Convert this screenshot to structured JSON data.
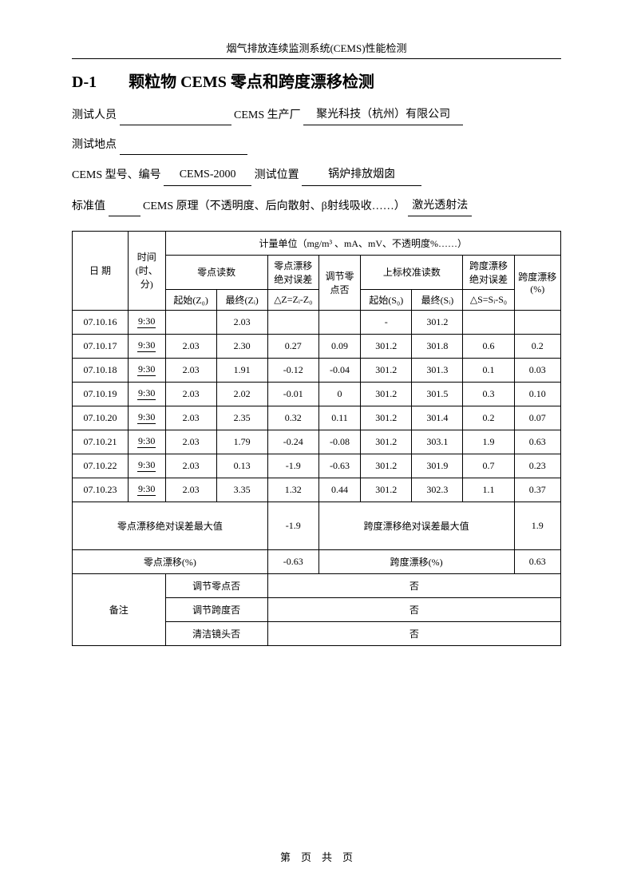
{
  "header": "烟气排放连续监测系统(CEMS)性能检测",
  "title_code": "D-1",
  "title_text": "颗粒物 CEMS 零点和跨度漂移检测",
  "info": {
    "tester_label": "测试人员",
    "tester_value": "",
    "manufacturer_label": "CEMS 生产厂",
    "manufacturer_value": "聚光科技（杭州）有限公司",
    "location_label": "测试地点",
    "location_value": "",
    "model_label": "CEMS 型号、编号",
    "model_value": "CEMS-2000",
    "position_label": "测试位置",
    "position_value": "锅炉排放烟囱",
    "standard_label": "标准值",
    "standard_value": "",
    "principle_label": "CEMS 原理（不透明度、后向散射、β射线吸收……）",
    "principle_value": "激光透射法"
  },
  "table": {
    "unit_header": "计量单位（mg/m³ 、mA、mV、不透明度%……）",
    "col_date": "日 期",
    "col_time": "时间(时、分)",
    "col_zero_read": "零点读数",
    "col_zero_abs": "零点漂移绝对误差",
    "col_adjust_zero": "调节零点否",
    "col_cal_read": "上标校准读数",
    "col_span_abs": "跨度漂移绝对误差",
    "col_span_drift": "跨度漂移(%)",
    "col_start_z": "起始(Z₀)",
    "col_end_z": "最终(Zᵢ)",
    "col_dz": "△Z=Zᵢ-Z₀",
    "col_start_s": "起始(S₀)",
    "col_end_s": "最终(Sᵢ)",
    "col_ds": "△S=Sᵢ-S₀",
    "rows": [
      {
        "date": "07.10.16",
        "time": "9:30",
        "z0": "",
        "zi": "2.03",
        "dz": "",
        "adj": "",
        "s0": "-",
        "si": "301.2",
        "ds": "",
        "drift": ""
      },
      {
        "date": "07.10.17",
        "time": "9:30",
        "z0": "2.03",
        "zi": "2.30",
        "dz": "0.27",
        "adj": "0.09",
        "s0": "301.2",
        "si": "301.8",
        "ds": "0.6",
        "drift": "0.2"
      },
      {
        "date": "07.10.18",
        "time": "9:30",
        "z0": "2.03",
        "zi": "1.91",
        "dz": "-0.12",
        "adj": "-0.04",
        "s0": "301.2",
        "si": "301.3",
        "ds": "0.1",
        "drift": "0.03"
      },
      {
        "date": "07.10.19",
        "time": "9:30",
        "z0": "2.03",
        "zi": "2.02",
        "dz": "-0.01",
        "adj": "0",
        "s0": "301.2",
        "si": "301.5",
        "ds": "0.3",
        "drift": "0.10"
      },
      {
        "date": "07.10.20",
        "time": "9:30",
        "z0": "2.03",
        "zi": "2.35",
        "dz": "0.32",
        "adj": "0.11",
        "s0": "301.2",
        "si": "301.4",
        "ds": "0.2",
        "drift": "0.07"
      },
      {
        "date": "07.10.21",
        "time": "9:30",
        "z0": "2.03",
        "zi": "1.79",
        "dz": "-0.24",
        "adj": "-0.08",
        "s0": "301.2",
        "si": "303.1",
        "ds": "1.9",
        "drift": "0.63"
      },
      {
        "date": "07.10.22",
        "time": "9:30",
        "z0": "2.03",
        "zi": "0.13",
        "dz": "-1.9",
        "adj": "-0.63",
        "s0": "301.2",
        "si": "301.9",
        "ds": "0.7",
        "drift": "0.23"
      },
      {
        "date": "07.10.23",
        "time": "9:30",
        "z0": "2.03",
        "zi": "3.35",
        "dz": "1.32",
        "adj": "0.44",
        "s0": "301.2",
        "si": "302.3",
        "ds": "1.1",
        "drift": "0.37"
      }
    ],
    "zero_max_label": "零点漂移绝对误差最大值",
    "zero_max_value": "-1.9",
    "span_max_label": "跨度漂移绝对误差最大值",
    "span_max_value": "1.9",
    "zero_drift_label": "零点漂移(%)",
    "zero_drift_value": "-0.63",
    "span_drift_label2": "跨度漂移(%)",
    "span_drift_value": "0.63",
    "remark_label": "备注",
    "remark_r1_label": "调节零点否",
    "remark_r1_value": "否",
    "remark_r2_label": "调节跨度否",
    "remark_r2_value": "否",
    "remark_r3_label": "清洁镜头否",
    "remark_r3_value": "否"
  },
  "footer": "第　页　共　页"
}
